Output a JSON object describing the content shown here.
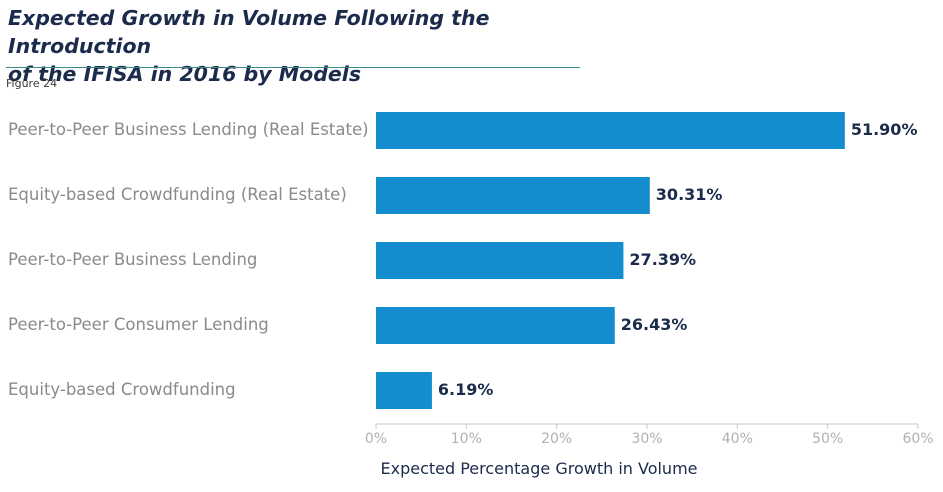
{
  "header": {
    "title_line1": "Expected Growth in Volume Following the Introduction",
    "title_line2": "of the IFISA in 2016 by Models",
    "figure_label": "Figure 24"
  },
  "chart_data": {
    "type": "bar",
    "orientation": "horizontal",
    "title": "Expected Growth in Volume Following the Introduction of the IFISA in 2016 by Models",
    "xlabel": "Expected Percentage Growth in Volume",
    "ylabel": "",
    "categories": [
      "Peer-to-Peer Business Lending (Real Estate)",
      "Equity-based Crowdfunding (Real Estate)",
      "Peer-to-Peer Business Lending",
      "Peer-to-Peer Consumer Lending",
      "Equity-based Crowdfunding"
    ],
    "values": [
      51.9,
      30.31,
      27.39,
      26.43,
      6.19
    ],
    "value_labels": [
      "51.90%",
      "30.31%",
      "27.39%",
      "26.43%",
      "6.19%"
    ],
    "xlim": [
      0,
      60
    ],
    "xticks": [
      0,
      10,
      20,
      30,
      40,
      50,
      60
    ],
    "xtick_labels": [
      "0%",
      "10%",
      "20%",
      "30%",
      "40%",
      "50%",
      "60%"
    ],
    "grid": false,
    "legend": "none",
    "bar_color": "#138dce"
  }
}
